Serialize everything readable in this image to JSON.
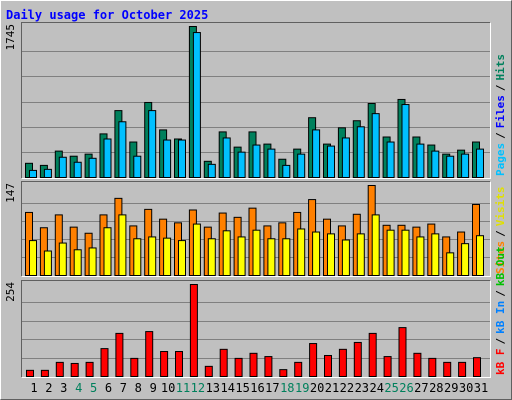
{
  "chart_data": [
    {
      "type": "bar",
      "title": "Daily usage for October 2025",
      "ylim": [
        0,
        1745
      ],
      "yticks": [
        1745
      ],
      "grid_divisions": 6,
      "legend": [
        {
          "name": "Pages",
          "color": "#00c0ff"
        },
        {
          "name": "Files",
          "color": "#0000ff"
        },
        {
          "name": "Hits",
          "color": "#00805c"
        }
      ],
      "legend_separator": "/",
      "series": [
        {
          "color": "#00805c",
          "values": [
            164,
            140,
            305,
            246,
            270,
            504,
            773,
            410,
            867,
            550,
            445,
            1745,
            187,
            527,
            351,
            527,
            386,
            211,
            328,
            691,
            386,
            574,
            656,
            855,
            468,
            902,
            468,
            375,
            270,
            316,
            410
          ]
        },
        {
          "color": "#00c0ff",
          "values": [
            82,
            94,
            234,
            176,
            222,
            445,
            644,
            246,
            773,
            433,
            433,
            1675,
            152,
            457,
            293,
            375,
            328,
            140,
            270,
            550,
            363,
            457,
            586,
            738,
            410,
            843,
            386,
            305,
            246,
            270,
            328
          ]
        }
      ]
    },
    {
      "type": "bar",
      "ylim": [
        0,
        147
      ],
      "yticks": [
        147
      ],
      "grid_divisions": 5,
      "legend": [
        {
          "name": "Sites",
          "color": "#ff8000"
        },
        {
          "name": "Visits",
          "color": "#e0e000"
        }
      ],
      "legend_separator": "/",
      "series": [
        {
          "color": "#ff8000",
          "values": [
            103,
            78,
            99,
            79,
            69,
            99,
            126,
            81,
            108,
            92,
            86,
            107,
            79,
            102,
            95,
            110,
            81,
            86,
            103,
            124,
            92,
            81,
            100,
            147,
            82,
            82,
            79,
            84,
            63,
            71,
            116
          ]
        },
        {
          "color": "#ffff00",
          "values": [
            57,
            40,
            53,
            42,
            45,
            78,
            99,
            60,
            63,
            61,
            57,
            84,
            60,
            73,
            63,
            74,
            60,
            60,
            76,
            71,
            68,
            58,
            68,
            99,
            74,
            74,
            63,
            68,
            37,
            52,
            65
          ]
        }
      ]
    },
    {
      "type": "bar",
      "ylim": [
        0,
        254
      ],
      "yticks": [
        254
      ],
      "grid_divisions": 5,
      "legend": [
        {
          "name": "kB F",
          "color": "#ff0000"
        },
        {
          "name": "kB In",
          "color": "#0080ff"
        },
        {
          "name": "kB Out",
          "color": "#00c000"
        }
      ],
      "legend_separator": "/",
      "series": [
        {
          "color": "#ff0000",
          "values": [
            17,
            17,
            39,
            36,
            39,
            77,
            119,
            50,
            124,
            69,
            69,
            254,
            28,
            75,
            50,
            64,
            55,
            19,
            39,
            91,
            58,
            75,
            94,
            119,
            55,
            135,
            64,
            50,
            39,
            39,
            52
          ]
        }
      ],
      "categories": [
        "1",
        "2",
        "3",
        "4",
        "5",
        "6",
        "7",
        "8",
        "9",
        "10",
        "11",
        "12",
        "13",
        "14",
        "15",
        "16",
        "17",
        "18",
        "19",
        "20",
        "21",
        "22",
        "23",
        "24",
        "25",
        "26",
        "27",
        "28",
        "29",
        "30",
        "31"
      ],
      "category_colors": [
        "#000000",
        "#000000",
        "#000000",
        "#00805c",
        "#00805c",
        "#000000",
        "#000000",
        "#000000",
        "#000000",
        "#000000",
        "#00805c",
        "#00805c",
        "#000000",
        "#000000",
        "#000000",
        "#000000",
        "#000000",
        "#00805c",
        "#00805c",
        "#000000",
        "#000000",
        "#000000",
        "#000000",
        "#000000",
        "#00805c",
        "#00805c",
        "#000000",
        "#000000",
        "#000000",
        "#000000",
        "#000000"
      ]
    }
  ]
}
